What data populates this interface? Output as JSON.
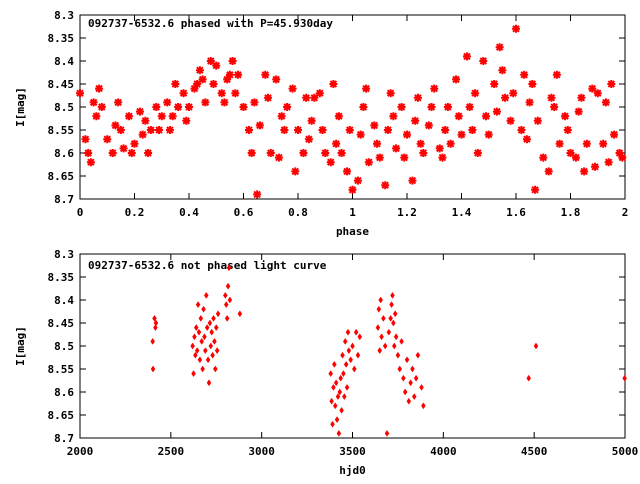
{
  "chart_data": [
    {
      "type": "scatter",
      "title": "092737-6532.6 phased with P=45.930day",
      "xlabel": "phase",
      "ylabel": "I[mag]",
      "xlim": [
        0,
        2
      ],
      "ylim": [
        8.3,
        8.7
      ],
      "y_inverted": true,
      "x_ticks": [
        "0",
        "0.2",
        "0.4",
        "0.6",
        "0.8",
        "1",
        "1.2",
        "1.4",
        "1.6",
        "1.8",
        "2"
      ],
      "y_ticks": [
        "8.3",
        "8.35",
        "8.4",
        "8.45",
        "8.5",
        "8.55",
        "8.6",
        "8.65",
        "8.7"
      ],
      "marker_color": "#ff0000",
      "points": [
        [
          0.0,
          8.47
        ],
        [
          0.02,
          8.57
        ],
        [
          0.03,
          8.6
        ],
        [
          0.04,
          8.62
        ],
        [
          0.05,
          8.49
        ],
        [
          0.06,
          8.52
        ],
        [
          0.07,
          8.46
        ],
        [
          0.08,
          8.5
        ],
        [
          0.1,
          8.57
        ],
        [
          0.12,
          8.6
        ],
        [
          0.13,
          8.54
        ],
        [
          0.14,
          8.49
        ],
        [
          0.15,
          8.55
        ],
        [
          0.16,
          8.59
        ],
        [
          0.18,
          8.52
        ],
        [
          0.19,
          8.6
        ],
        [
          0.2,
          8.58
        ],
        [
          0.22,
          8.51
        ],
        [
          0.23,
          8.56
        ],
        [
          0.24,
          8.53
        ],
        [
          0.25,
          8.6
        ],
        [
          0.26,
          8.55
        ],
        [
          0.28,
          8.5
        ],
        [
          0.29,
          8.55
        ],
        [
          0.3,
          8.52
        ],
        [
          0.32,
          8.49
        ],
        [
          0.33,
          8.55
        ],
        [
          0.34,
          8.52
        ],
        [
          0.35,
          8.45
        ],
        [
          0.36,
          8.5
        ],
        [
          0.38,
          8.47
        ],
        [
          0.39,
          8.53
        ],
        [
          0.4,
          8.5
        ],
        [
          0.42,
          8.46
        ],
        [
          0.43,
          8.45
        ],
        [
          0.44,
          8.42
        ],
        [
          0.45,
          8.44
        ],
        [
          0.46,
          8.49
        ],
        [
          0.48,
          8.4
        ],
        [
          0.49,
          8.45
        ],
        [
          0.5,
          8.41
        ],
        [
          0.52,
          8.47
        ],
        [
          0.53,
          8.49
        ],
        [
          0.54,
          8.44
        ],
        [
          0.55,
          8.43
        ],
        [
          0.56,
          8.4
        ],
        [
          0.57,
          8.47
        ],
        [
          0.58,
          8.43
        ],
        [
          0.6,
          8.5
        ],
        [
          0.62,
          8.55
        ],
        [
          0.63,
          8.6
        ],
        [
          0.64,
          8.49
        ],
        [
          0.65,
          8.69
        ],
        [
          0.66,
          8.54
        ],
        [
          0.68,
          8.43
        ],
        [
          0.69,
          8.48
        ],
        [
          0.7,
          8.6
        ],
        [
          0.72,
          8.44
        ],
        [
          0.73,
          8.61
        ],
        [
          0.74,
          8.52
        ],
        [
          0.75,
          8.55
        ],
        [
          0.76,
          8.5
        ],
        [
          0.78,
          8.46
        ],
        [
          0.79,
          8.64
        ],
        [
          0.8,
          8.55
        ],
        [
          0.82,
          8.6
        ],
        [
          0.83,
          8.48
        ],
        [
          0.84,
          8.57
        ],
        [
          0.85,
          8.53
        ],
        [
          0.86,
          8.48
        ],
        [
          0.88,
          8.47
        ],
        [
          0.89,
          8.55
        ],
        [
          0.9,
          8.6
        ],
        [
          0.92,
          8.62
        ],
        [
          0.93,
          8.45
        ],
        [
          0.94,
          8.58
        ],
        [
          0.95,
          8.52
        ],
        [
          0.96,
          8.6
        ],
        [
          0.98,
          8.64
        ],
        [
          0.99,
          8.55
        ],
        [
          1.0,
          8.68
        ],
        [
          1.02,
          8.66
        ],
        [
          1.03,
          8.56
        ],
        [
          1.04,
          8.5
        ],
        [
          1.05,
          8.46
        ],
        [
          1.06,
          8.62
        ],
        [
          1.08,
          8.54
        ],
        [
          1.09,
          8.58
        ],
        [
          1.1,
          8.61
        ],
        [
          1.12,
          8.67
        ],
        [
          1.13,
          8.55
        ],
        [
          1.14,
          8.47
        ],
        [
          1.15,
          8.52
        ],
        [
          1.16,
          8.59
        ],
        [
          1.18,
          8.5
        ],
        [
          1.19,
          8.61
        ],
        [
          1.2,
          8.56
        ],
        [
          1.22,
          8.66
        ],
        [
          1.23,
          8.53
        ],
        [
          1.24,
          8.48
        ],
        [
          1.25,
          8.58
        ],
        [
          1.26,
          8.6
        ],
        [
          1.28,
          8.54
        ],
        [
          1.29,
          8.5
        ],
        [
          1.3,
          8.46
        ],
        [
          1.32,
          8.59
        ],
        [
          1.33,
          8.61
        ],
        [
          1.34,
          8.55
        ],
        [
          1.35,
          8.5
        ],
        [
          1.36,
          8.58
        ],
        [
          1.38,
          8.44
        ],
        [
          1.39,
          8.52
        ],
        [
          1.4,
          8.56
        ],
        [
          1.42,
          8.39
        ],
        [
          1.43,
          8.5
        ],
        [
          1.44,
          8.55
        ],
        [
          1.45,
          8.47
        ],
        [
          1.46,
          8.6
        ],
        [
          1.48,
          8.4
        ],
        [
          1.49,
          8.52
        ],
        [
          1.5,
          8.56
        ],
        [
          1.52,
          8.45
        ],
        [
          1.53,
          8.51
        ],
        [
          1.54,
          8.37
        ],
        [
          1.55,
          8.42
        ],
        [
          1.56,
          8.48
        ],
        [
          1.58,
          8.53
        ],
        [
          1.59,
          8.47
        ],
        [
          1.6,
          8.33
        ],
        [
          1.62,
          8.55
        ],
        [
          1.63,
          8.43
        ],
        [
          1.64,
          8.57
        ],
        [
          1.65,
          8.49
        ],
        [
          1.66,
          8.45
        ],
        [
          1.67,
          8.68
        ],
        [
          1.68,
          8.53
        ],
        [
          1.7,
          8.61
        ],
        [
          1.72,
          8.64
        ],
        [
          1.73,
          8.48
        ],
        [
          1.74,
          8.5
        ],
        [
          1.75,
          8.43
        ],
        [
          1.76,
          8.58
        ],
        [
          1.78,
          8.52
        ],
        [
          1.79,
          8.55
        ],
        [
          1.8,
          8.6
        ],
        [
          1.82,
          8.61
        ],
        [
          1.83,
          8.51
        ],
        [
          1.84,
          8.48
        ],
        [
          1.85,
          8.64
        ],
        [
          1.86,
          8.58
        ],
        [
          1.88,
          8.46
        ],
        [
          1.89,
          8.63
        ],
        [
          1.9,
          8.47
        ],
        [
          1.92,
          8.58
        ],
        [
          1.93,
          8.49
        ],
        [
          1.94,
          8.62
        ],
        [
          1.95,
          8.45
        ],
        [
          1.96,
          8.56
        ],
        [
          1.98,
          8.6
        ],
        [
          1.99,
          8.61
        ]
      ]
    },
    {
      "type": "scatter",
      "title": "092737-6532.6 not phased light curve",
      "xlabel": "hjd0",
      "ylabel": "I[mag]",
      "xlim": [
        2000,
        5000
      ],
      "ylim": [
        8.3,
        8.7
      ],
      "y_inverted": true,
      "x_ticks": [
        "2000",
        "2500",
        "3000",
        "3500",
        "4000",
        "4500",
        "5000"
      ],
      "y_ticks": [
        "8.3",
        "8.35",
        "8.4",
        "8.45",
        "8.5",
        "8.55",
        "8.6",
        "8.65",
        "8.7"
      ],
      "marker_color": "#ff0000",
      "points": [
        [
          2400,
          8.49
        ],
        [
          2402,
          8.55
        ],
        [
          2410,
          8.44
        ],
        [
          2415,
          8.46
        ],
        [
          2418,
          8.45
        ],
        [
          2620,
          8.5
        ],
        [
          2625,
          8.56
        ],
        [
          2630,
          8.48
        ],
        [
          2635,
          8.52
        ],
        [
          2640,
          8.46
        ],
        [
          2645,
          8.51
        ],
        [
          2650,
          8.41
        ],
        [
          2655,
          8.47
        ],
        [
          2660,
          8.53
        ],
        [
          2665,
          8.44
        ],
        [
          2670,
          8.49
        ],
        [
          2675,
          8.55
        ],
        [
          2680,
          8.42
        ],
        [
          2685,
          8.48
        ],
        [
          2690,
          8.51
        ],
        [
          2695,
          8.39
        ],
        [
          2700,
          8.46
        ],
        [
          2705,
          8.53
        ],
        [
          2710,
          8.58
        ],
        [
          2715,
          8.45
        ],
        [
          2720,
          8.5
        ],
        [
          2725,
          8.47
        ],
        [
          2730,
          8.52
        ],
        [
          2735,
          8.44
        ],
        [
          2740,
          8.49
        ],
        [
          2745,
          8.55
        ],
        [
          2750,
          8.46
        ],
        [
          2755,
          8.51
        ],
        [
          2760,
          8.43
        ],
        [
          2800,
          8.39
        ],
        [
          2805,
          8.41
        ],
        [
          2810,
          8.44
        ],
        [
          2815,
          8.37
        ],
        [
          2820,
          8.33
        ],
        [
          2825,
          8.4
        ],
        [
          2880,
          8.43
        ],
        [
          3380,
          8.56
        ],
        [
          3385,
          8.62
        ],
        [
          3390,
          8.67
        ],
        [
          3395,
          8.59
        ],
        [
          3400,
          8.54
        ],
        [
          3405,
          8.63
        ],
        [
          3410,
          8.58
        ],
        [
          3415,
          8.66
        ],
        [
          3420,
          8.61
        ],
        [
          3425,
          8.69
        ],
        [
          3430,
          8.6
        ],
        [
          3435,
          8.57
        ],
        [
          3440,
          8.64
        ],
        [
          3445,
          8.52
        ],
        [
          3450,
          8.56
        ],
        [
          3455,
          8.61
        ],
        [
          3460,
          8.49
        ],
        [
          3465,
          8.54
        ],
        [
          3470,
          8.59
        ],
        [
          3475,
          8.47
        ],
        [
          3480,
          8.51
        ],
        [
          3490,
          8.53
        ],
        [
          3500,
          8.5
        ],
        [
          3510,
          8.55
        ],
        [
          3520,
          8.47
        ],
        [
          3530,
          8.52
        ],
        [
          3540,
          8.48
        ],
        [
          3640,
          8.46
        ],
        [
          3645,
          8.42
        ],
        [
          3650,
          8.51
        ],
        [
          3655,
          8.4
        ],
        [
          3660,
          8.48
        ],
        [
          3670,
          8.44
        ],
        [
          3680,
          8.5
        ],
        [
          3690,
          8.69
        ],
        [
          3700,
          8.47
        ],
        [
          3710,
          8.44
        ],
        [
          3715,
          8.41
        ],
        [
          3720,
          8.39
        ],
        [
          3725,
          8.45
        ],
        [
          3730,
          8.5
        ],
        [
          3735,
          8.43
        ],
        [
          3740,
          8.48
        ],
        [
          3750,
          8.52
        ],
        [
          3760,
          8.55
        ],
        [
          3770,
          8.49
        ],
        [
          3780,
          8.57
        ],
        [
          3790,
          8.6
        ],
        [
          3800,
          8.53
        ],
        [
          3810,
          8.62
        ],
        [
          3820,
          8.58
        ],
        [
          3830,
          8.55
        ],
        [
          3840,
          8.61
        ],
        [
          3850,
          8.57
        ],
        [
          3860,
          8.52
        ],
        [
          3880,
          8.59
        ],
        [
          3890,
          8.63
        ],
        [
          4470,
          8.57
        ],
        [
          4510,
          8.5
        ],
        [
          4998,
          8.57
        ]
      ]
    }
  ]
}
